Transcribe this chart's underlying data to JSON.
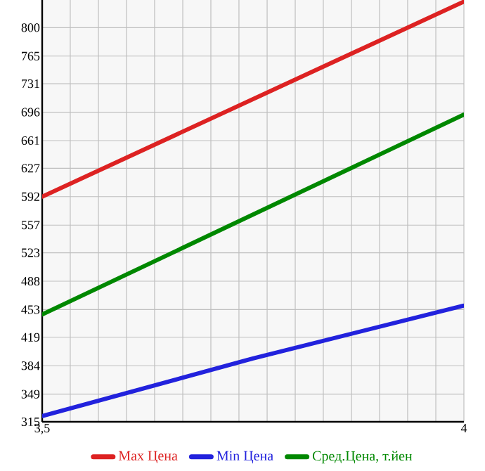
{
  "chart_data": {
    "type": "line",
    "ylim": [
      315,
      834
    ],
    "yticks": [
      315,
      349,
      384,
      419,
      453,
      488,
      523,
      557,
      592,
      627,
      661,
      696,
      731,
      765,
      800
    ],
    "xlim": [
      3.5,
      4
    ],
    "xticks": [
      {
        "value": 3.5,
        "label": "3,5"
      },
      {
        "value": 3.5333,
        "label": null
      },
      {
        "value": 3.5667,
        "label": null
      },
      {
        "value": 3.6,
        "label": null
      },
      {
        "value": 3.6333,
        "label": null
      },
      {
        "value": 3.6667,
        "label": null
      },
      {
        "value": 3.7,
        "label": null
      },
      {
        "value": 3.7333,
        "label": null
      },
      {
        "value": 3.7667,
        "label": null
      },
      {
        "value": 3.8,
        "label": null
      },
      {
        "value": 3.8333,
        "label": null
      },
      {
        "value": 3.8667,
        "label": null
      },
      {
        "value": 3.9,
        "label": null
      },
      {
        "value": 3.9333,
        "label": null
      },
      {
        "value": 3.9667,
        "label": null
      },
      {
        "value": 4,
        "label": "4"
      }
    ],
    "grid": true,
    "legend": "bottom",
    "line_style": "solid",
    "marker": "none",
    "series": [
      {
        "name": "Max Цена",
        "color": "#dd2222",
        "x": [
          3.5,
          4
        ],
        "values": [
          592,
          832
        ]
      },
      {
        "name": "Min Цена",
        "color": "#2222dd",
        "x": [
          3.5,
          3.75,
          4
        ],
        "values": [
          322,
          393,
          458
        ]
      },
      {
        "name": "Сред.Цена, т.йен",
        "color": "#008800",
        "x": [
          3.5,
          4
        ],
        "values": [
          447,
          693
        ]
      }
    ]
  }
}
